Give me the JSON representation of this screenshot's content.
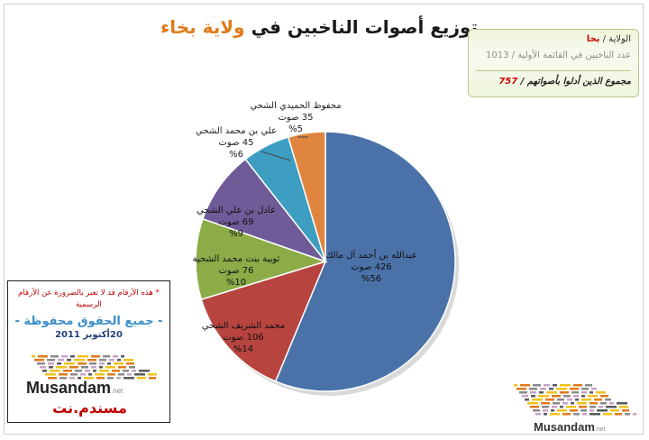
{
  "header": {
    "title_main": "توزيع أصوات الناخبين في",
    "title_accent": "ولاية بخاء"
  },
  "info": {
    "wilayah_label": "الولاية /",
    "wilayah_value": "بخا",
    "voters_label": "عدد الناخبين في القائمة الأولية /",
    "voters_value": "1013",
    "voted_label": "مجموع الذين أدلوا بأصواتهم /",
    "voted_value": "757"
  },
  "note": {
    "disclaimer": "* هذه الأرقام قد لا تعبر بالضرورة عن الأرقام الرسمية",
    "rights": "- جميع الحقوق محفوظة -",
    "date": "20أكتوبر 2011",
    "logo_text": "Musandam",
    "logo_suffix": ".net",
    "logo_arabic": "مسندم.نت"
  },
  "brand_bottom": {
    "text": "Musandam",
    "suffix": ".net"
  },
  "colors": {
    "slices": [
      "#4a72a8",
      "#b8443f",
      "#8cac48",
      "#6f5b97",
      "#3e9ec2",
      "#e0853f"
    ],
    "title_accent": "#e07b1a",
    "disclaimer": "#c00000",
    "rights": "#3b8ec8"
  },
  "chart_data": {
    "type": "pie",
    "title": "توزيع أصوات الناخبين في ولاية بخاء",
    "start_angle_deg": 0,
    "direction": "clockwise",
    "slices": [
      {
        "name": "عبدالله بن أحمد آل مالك",
        "votes": 426,
        "votes_label": "426 صوت",
        "percent_label": "%56"
      },
      {
        "name": "محمد الشريف الشحي",
        "votes": 106,
        "votes_label": "106 صوت",
        "percent_label": "%14"
      },
      {
        "name": "ثويبة بنت محمد الشحية",
        "votes": 76,
        "votes_label": "76 صوت",
        "percent_label": "%10"
      },
      {
        "name": "عادل بن علي الشحي",
        "votes": 69,
        "votes_label": "69 صوت",
        "percent_label": "%9"
      },
      {
        "name": "علي بن محمد الشحي",
        "votes": 45,
        "votes_label": "45 صوت",
        "percent_label": "%6"
      },
      {
        "name": "محفوظ الحميدي الشحي",
        "votes": 35,
        "votes_label": "35 صوت",
        "percent_label": "%5"
      }
    ]
  }
}
